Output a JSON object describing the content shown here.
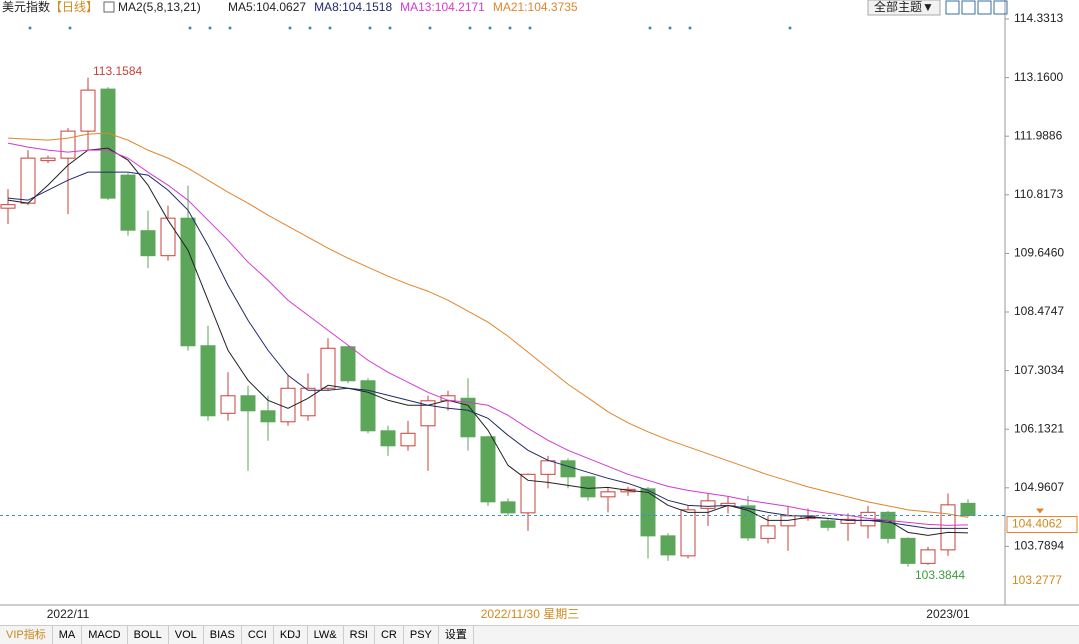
{
  "header": {
    "title": "美元指数",
    "period": "【日线】",
    "indicator": "MA2(5,8,13,21)",
    "theme_button": "全部主题▼"
  },
  "chart_data": {
    "type": "candlestick",
    "categories": [
      null,
      null,
      null,
      "2022/11",
      null,
      null,
      null,
      null,
      null,
      null,
      null,
      null,
      null,
      null,
      null,
      null,
      null,
      null,
      null,
      null,
      null,
      null,
      null,
      null,
      null,
      null,
      null,
      null,
      null,
      null,
      null,
      null,
      null,
      null,
      null,
      null,
      null,
      null,
      null,
      null,
      null,
      null,
      null,
      null,
      null,
      null,
      null,
      "2023/01",
      null
    ],
    "cursor_date": "2022/11/30 星期三",
    "open": [
      110.55,
      110.65,
      111.5,
      111.55,
      112.09,
      112.93,
      111.21,
      110.1,
      109.6,
      110.35,
      107.8,
      106.45,
      106.8,
      106.5,
      106.28,
      106.4,
      106.95,
      107.78,
      107.1,
      106.1,
      105.8,
      106.2,
      106.7,
      106.75,
      105.98,
      104.68,
      104.46,
      105.23,
      105.5,
      105.18,
      104.78,
      104.88,
      104.94,
      104.0,
      103.6,
      104.55,
      104.6,
      104.6,
      103.95,
      104.2,
      104.35,
      104.3,
      104.25,
      104.2,
      104.47,
      103.95,
      103.45,
      103.72,
      104.65
    ],
    "high": [
      110.93,
      111.71,
      111.6,
      112.15,
      113.1584,
      112.97,
      111.25,
      110.5,
      110.6,
      111.0,
      108.2,
      107.27,
      107.0,
      106.8,
      107.2,
      107.25,
      107.95,
      107.8,
      107.15,
      106.2,
      106.3,
      106.8,
      106.9,
      107.15,
      106.0,
      104.75,
      105.25,
      105.6,
      105.55,
      105.2,
      104.97,
      104.98,
      104.98,
      104.05,
      104.6,
      104.85,
      104.8,
      104.8,
      104.4,
      104.6,
      104.55,
      104.35,
      104.45,
      104.6,
      104.5,
      103.97,
      103.78,
      104.85,
      104.73
    ],
    "low": [
      110.23,
      110.61,
      111.45,
      110.43,
      111.71,
      110.71,
      110.0,
      109.35,
      109.5,
      107.7,
      106.3,
      106.3,
      105.3,
      105.9,
      106.2,
      106.3,
      106.9,
      107.05,
      106.05,
      105.6,
      105.7,
      105.3,
      106.5,
      105.7,
      104.6,
      104.4,
      104.1,
      104.95,
      104.95,
      104.7,
      104.47,
      104.8,
      103.55,
      103.5,
      103.55,
      104.2,
      104.45,
      103.9,
      103.85,
      103.7,
      104.3,
      104.1,
      103.9,
      103.95,
      103.85,
      103.3844,
      103.42,
      103.6,
      104.38
    ],
    "close": [
      110.62,
      111.55,
      111.55,
      112.09,
      112.91,
      110.75,
      110.11,
      109.6,
      110.35,
      107.8,
      106.4,
      106.8,
      106.5,
      106.28,
      106.95,
      106.95,
      107.75,
      107.1,
      106.1,
      105.8,
      106.05,
      106.7,
      106.8,
      105.98,
      104.68,
      104.46,
      105.23,
      105.5,
      105.18,
      104.78,
      104.88,
      104.93,
      104.0,
      103.62,
      104.52,
      104.7,
      104.65,
      103.96,
      104.2,
      104.4,
      104.4,
      104.17,
      104.33,
      104.47,
      103.95,
      103.45,
      103.72,
      104.62,
      104.4062
    ],
    "up_color": "#c8413a",
    "down_color": "#5ca65a",
    "series": [
      {
        "name": "MA5:104.0627",
        "color": "#222222",
        "values": [
          110.71,
          110.65,
          111.01,
          111.41,
          111.71,
          111.75,
          111.51,
          111.01,
          110.31,
          109.71,
          108.71,
          107.71,
          107.11,
          106.71,
          106.55,
          106.75,
          107.01,
          106.95,
          106.87,
          106.71,
          106.61,
          106.61,
          106.71,
          106.61,
          106.11,
          105.41,
          105.11,
          105.07,
          105.01,
          104.95,
          104.97,
          104.91,
          104.87,
          104.61,
          104.47,
          104.47,
          104.61,
          104.51,
          104.31,
          104.31,
          104.37,
          104.35,
          104.31,
          104.31,
          104.31,
          104.07,
          104.01,
          104.07,
          104.06
        ]
      },
      {
        "name": "MA8:104.1518",
        "color": "#1f2a6b",
        "values": [
          110.75,
          110.71,
          110.91,
          111.11,
          111.27,
          111.27,
          111.27,
          111.21,
          110.91,
          110.51,
          109.81,
          109.01,
          108.31,
          107.71,
          107.21,
          106.91,
          106.91,
          106.95,
          106.91,
          106.81,
          106.71,
          106.61,
          106.55,
          106.51,
          106.35,
          106.01,
          105.71,
          105.51,
          105.39,
          105.27,
          105.15,
          105.05,
          104.91,
          104.71,
          104.61,
          104.59,
          104.61,
          104.55,
          104.47,
          104.41,
          104.39,
          104.35,
          104.31,
          104.31,
          104.27,
          104.21,
          104.15,
          104.15,
          104.15
        ]
      },
      {
        "name": "MA13:104.2171",
        "color": "#d23ad2",
        "values": [
          111.85,
          111.77,
          111.71,
          111.67,
          111.71,
          111.71,
          111.55,
          111.27,
          111.01,
          110.71,
          110.31,
          109.91,
          109.47,
          109.11,
          108.71,
          108.41,
          108.11,
          107.81,
          107.51,
          107.27,
          107.07,
          106.87,
          106.71,
          106.67,
          106.61,
          106.41,
          106.15,
          105.91,
          105.71,
          105.55,
          105.39,
          105.23,
          105.11,
          104.99,
          104.91,
          104.85,
          104.79,
          104.71,
          104.65,
          104.59,
          104.51,
          104.45,
          104.41,
          104.35,
          104.31,
          104.27,
          104.23,
          104.21,
          104.22
        ]
      },
      {
        "name": "MA21:104.3735",
        "color": "#e0862a",
        "values": [
          111.95,
          111.93,
          111.91,
          111.95,
          112.03,
          112.05,
          111.91,
          111.71,
          111.55,
          111.35,
          111.11,
          110.87,
          110.65,
          110.41,
          110.19,
          109.97,
          109.75,
          109.55,
          109.37,
          109.19,
          109.03,
          108.89,
          108.71,
          108.49,
          108.27,
          107.99,
          107.67,
          107.35,
          107.03,
          106.76,
          106.48,
          106.26,
          106.08,
          105.92,
          105.78,
          105.64,
          105.5,
          105.36,
          105.22,
          105.1,
          104.98,
          104.88,
          104.78,
          104.68,
          104.6,
          104.52,
          104.48,
          104.44,
          104.37
        ]
      }
    ],
    "ylim": [
      102.618,
      114.711
    ],
    "yticks": [
      114.3313,
      {
        "value": 113.16,
        "label": "113.1600"
      },
      111.9886,
      110.8173,
      {
        "value": 109.646,
        "label": "109.6460"
      },
      108.4747,
      107.3034,
      106.1321,
      104.9607,
      103.7894
    ],
    "last_price": 104.4062,
    "axis_low_label": "103.2777",
    "high_label": "113.1584",
    "low_label": "103.3844"
  },
  "tabs": [
    "VIP指标",
    "MA",
    "MACD",
    "BOLL",
    "VOL",
    "BIAS",
    "CCI",
    "KDJ",
    "LW&",
    "RSI",
    "CR",
    "PSY",
    "设置"
  ]
}
